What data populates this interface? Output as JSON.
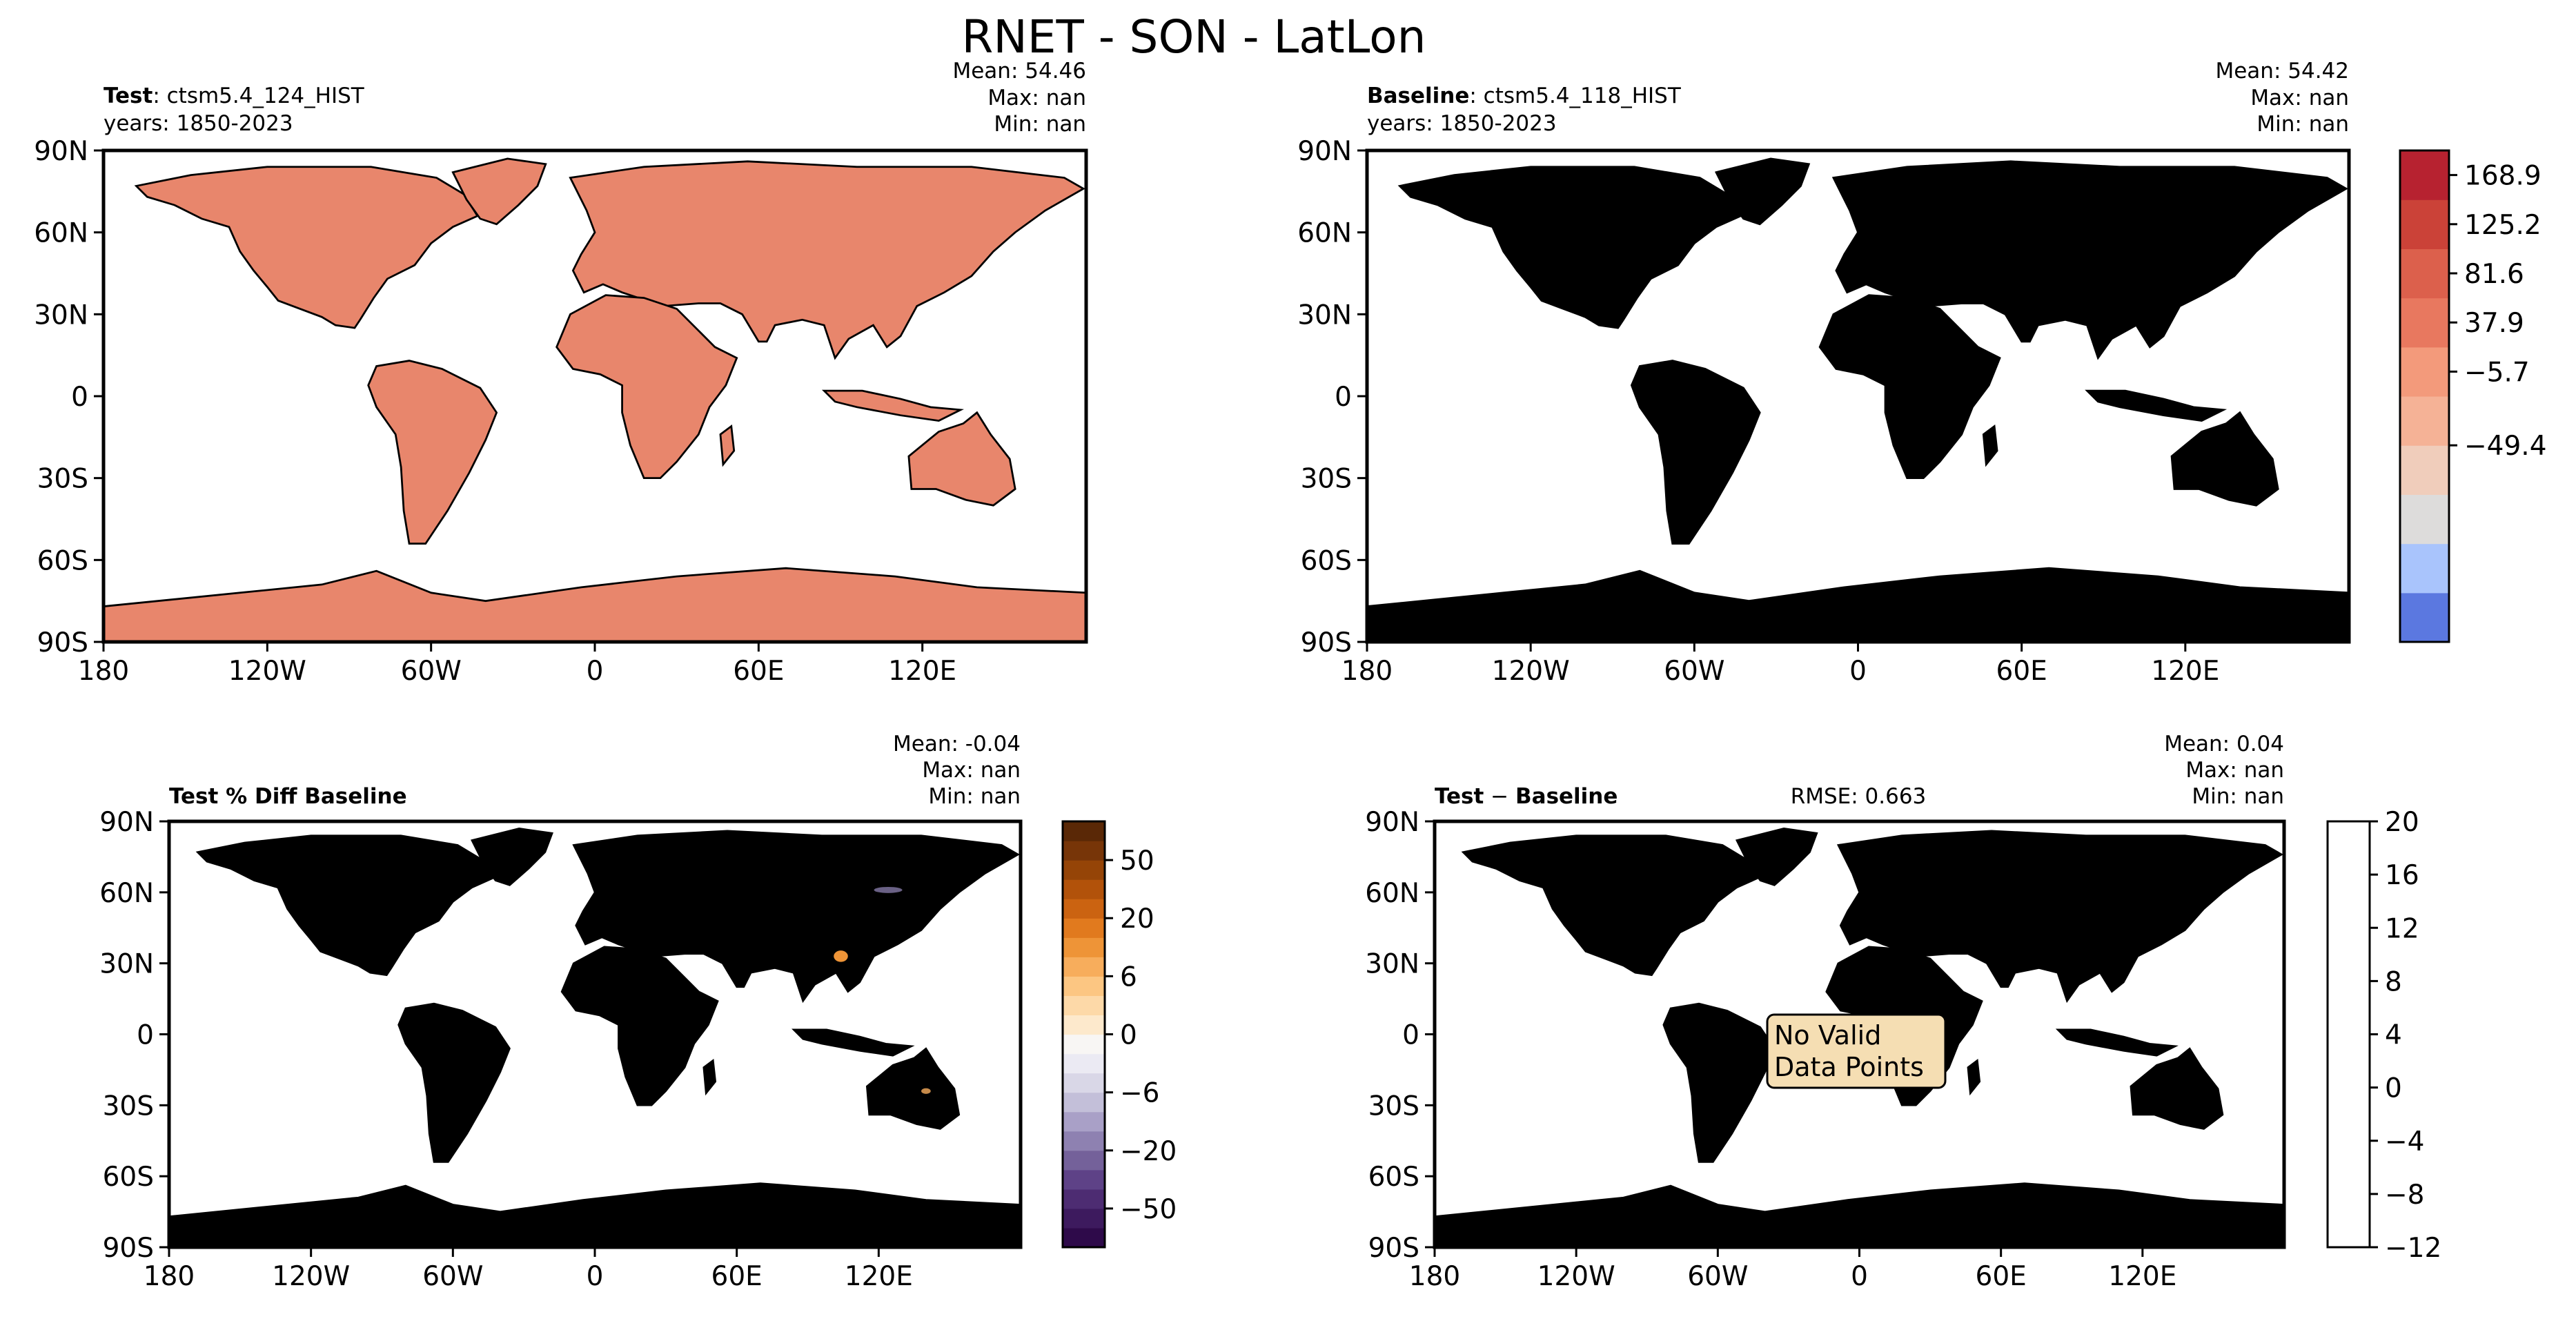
{
  "figure": {
    "title": "RNET - SON - LatLon",
    "lat_ticks": [
      "90N",
      "60N",
      "30N",
      "0",
      "30S",
      "60S",
      "90S"
    ],
    "lon_ticks": [
      "180",
      "120W",
      "60W",
      "0",
      "60E",
      "120E"
    ]
  },
  "panels": {
    "test": {
      "label_bold": "Test",
      "label_rest": ": ctsm5.4_124_HIST",
      "years": "years: 1850-2023",
      "stats": {
        "mean": "Mean: 54.46",
        "max": "Max:   nan",
        "min": "Min:   nan"
      }
    },
    "baseline": {
      "label_bold": "Baseline",
      "label_rest": ": ctsm5.4_118_HIST",
      "years": "years: 1850-2023",
      "stats": {
        "mean": "Mean: 54.42",
        "max": "Max:   nan",
        "min": "Min:   nan"
      }
    },
    "pct_diff": {
      "label": "Test % Diff Baseline",
      "stats": {
        "mean": "Mean: -0.04",
        "max": "Max:   nan",
        "min": "Min:   nan"
      }
    },
    "diff": {
      "label_bold": "Test",
      "label_minus": " − ",
      "label_bold2": "Baseline",
      "rmse": "RMSE: 0.663",
      "stats": {
        "mean": "Mean:  0.04",
        "max": "Max:   nan",
        "min": "Min:   nan"
      },
      "no_data_line1": "No Valid",
      "no_data_line2": "Data Points"
    }
  },
  "colorbars": {
    "main": {
      "tick_labels": [
        "168.9",
        "125.2",
        "81.6",
        "37.9",
        "−5.7",
        "−49.4"
      ],
      "colors": [
        "#5b78e0",
        "#a9c4fc",
        "#dddcdb",
        "#f0cdbb",
        "#f5b296",
        "#f39a7b",
        "#e8785f",
        "#dc604c",
        "#cb4238",
        "#b72230"
      ]
    },
    "pct": {
      "tick_labels": [
        "50",
        "20",
        "6",
        "0",
        "−6",
        "−20",
        "−50"
      ],
      "colors": [
        "#2e0a4a",
        "#3d1a5e",
        "#4d2c72",
        "#5e4287",
        "#74619a",
        "#8e81b1",
        "#a9a0c7",
        "#c3bfd9",
        "#d9d7e7",
        "#ebeaf3",
        "#f8f6f4",
        "#fde9cc",
        "#fdd9a8",
        "#fcc682",
        "#f7ad5c",
        "#ee9437",
        "#e17a1e",
        "#cb6311",
        "#b2520a",
        "#954407",
        "#773508",
        "#5a2806"
      ]
    },
    "diff": {
      "tick_labels": [
        "20",
        "16",
        "12",
        "8",
        "4",
        "0",
        "−4",
        "−8",
        "−12"
      ]
    }
  }
}
